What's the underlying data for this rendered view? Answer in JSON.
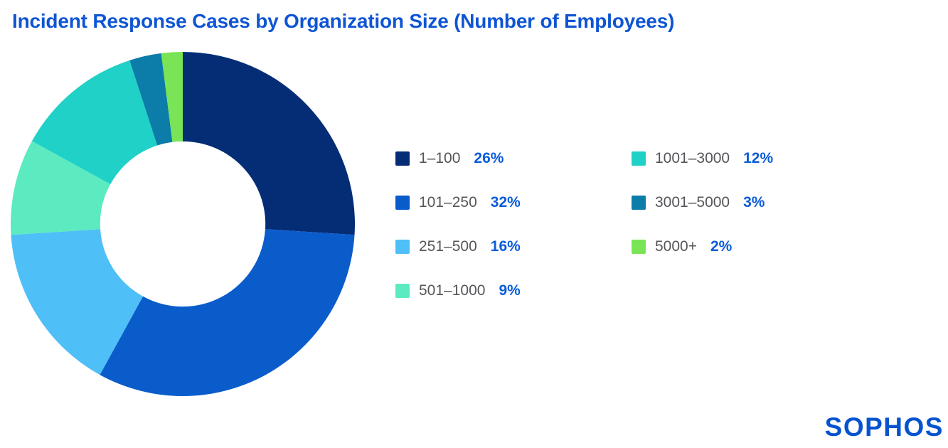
{
  "title": "Incident Response Cases by Organization Size (Number of Employees)",
  "logo_text": "SOPHOS",
  "colors": {
    "background": "#FFFFFF",
    "title": "#0E55D4",
    "legend_label": "#54565A",
    "legend_value": "#0A5CDB",
    "logo": "#0553CE"
  },
  "chart_data": {
    "type": "pie",
    "style": "donut",
    "title": "Incident Response Cases by Organization Size (Number of Employees)",
    "start_angle_deg": -90,
    "direction": "clockwise",
    "inner_radius_ratio": 0.48,
    "total": 100,
    "segments": [
      {
        "label": "1–100",
        "value_pct": 26,
        "color": "#042D76"
      },
      {
        "label": "101–250",
        "value_pct": 32,
        "color": "#0A5CCB"
      },
      {
        "label": "251–500",
        "value_pct": 16,
        "color": "#4EBFF7"
      },
      {
        "label": "501–1000",
        "value_pct": 9,
        "color": "#5CEAC1"
      },
      {
        "label": "1001–3000",
        "value_pct": 12,
        "color": "#1FD1C6"
      },
      {
        "label": "3001–5000",
        "value_pct": 3,
        "color": "#0B7DA8"
      },
      {
        "label": "5000+",
        "value_pct": 2,
        "color": "#79E455"
      }
    ],
    "legend": {
      "position": "right-of-chart",
      "columns": 2,
      "column_split": 4,
      "value_suffix": "%"
    }
  }
}
